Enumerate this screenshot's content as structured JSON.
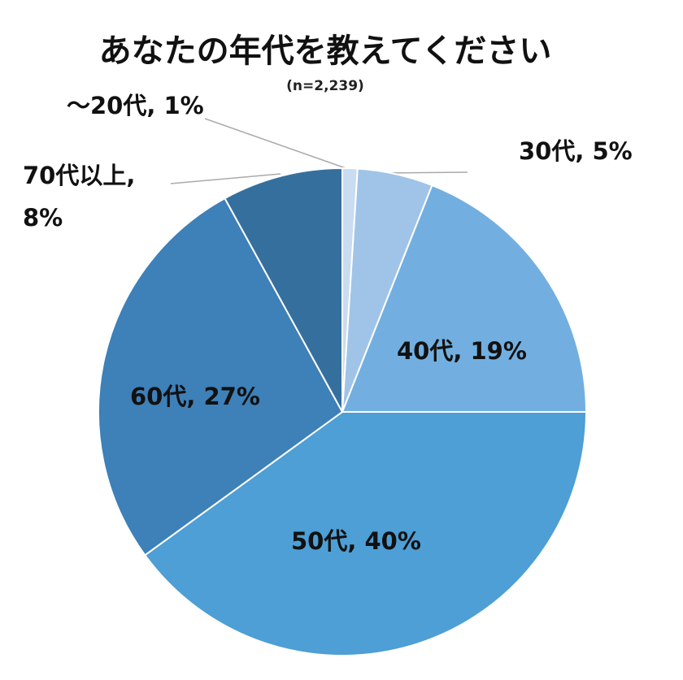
{
  "chart_data": {
    "type": "pie",
    "title": "あなたの年代を教えてください",
    "subtitle": "(n=2,239)",
    "labels": [
      "～20代, 1%",
      "30代, 5%",
      "40代, 19%",
      "50代, 40%",
      "60代, 27%",
      "70代以上, 8%"
    ],
    "values": [
      1,
      5,
      19,
      40,
      27,
      8
    ],
    "colors": [
      "#c9dcf0",
      "#a0c4e8",
      "#72afe0",
      "#4d9fd5",
      "#3e80b8",
      "#356f9e"
    ]
  }
}
